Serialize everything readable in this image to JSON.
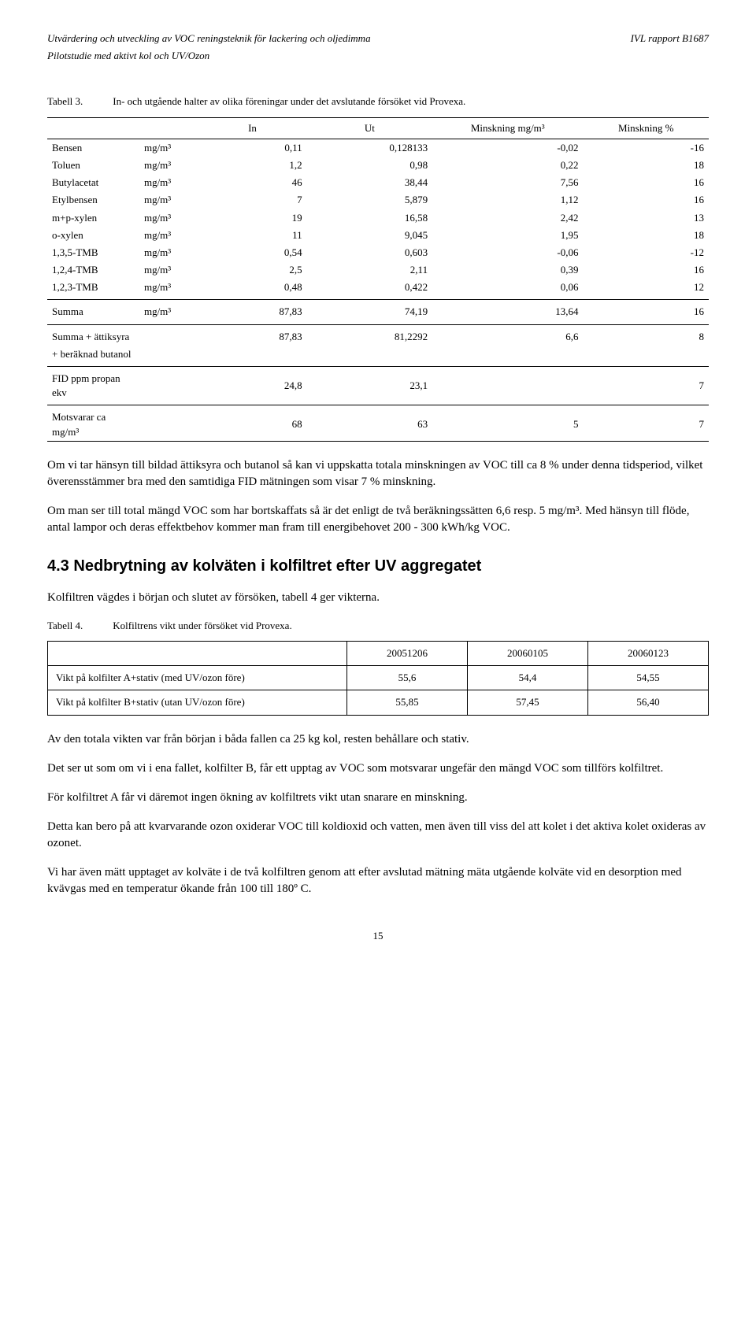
{
  "header": {
    "left_line1": "Utvärdering och utveckling av VOC reningsteknik för lackering och oljedimma",
    "left_line2": "Pilotstudie med aktivt kol och UV/Ozon",
    "right": "IVL rapport B1687"
  },
  "table3": {
    "caption_label": "Tabell 3.",
    "caption_text": "In- och utgående halter av olika föreningar under det avslutande försöket vid Provexa.",
    "headers": [
      "",
      "",
      "In",
      "Ut",
      "Minskning mg/m³",
      "Minskning %"
    ],
    "rows": [
      {
        "name": "Bensen",
        "unit": "mg/m³",
        "in": "0,11",
        "ut": "0,128133",
        "mins": "-0,02",
        "pct": "-16"
      },
      {
        "name": "Toluen",
        "unit": "mg/m³",
        "in": "1,2",
        "ut": "0,98",
        "mins": "0,22",
        "pct": "18"
      },
      {
        "name": "Butylacetat",
        "unit": "mg/m³",
        "in": "46",
        "ut": "38,44",
        "mins": "7,56",
        "pct": "16"
      },
      {
        "name": "Etylbensen",
        "unit": "mg/m³",
        "in": "7",
        "ut": "5,879",
        "mins": "1,12",
        "pct": "16"
      },
      {
        "name": "m+p-xylen",
        "unit": "mg/m³",
        "in": "19",
        "ut": "16,58",
        "mins": "2,42",
        "pct": "13"
      },
      {
        "name": "o-xylen",
        "unit": "mg/m³",
        "in": "11",
        "ut": "9,045",
        "mins": "1,95",
        "pct": "18"
      },
      {
        "name": "1,3,5-TMB",
        "unit": "mg/m³",
        "in": "0,54",
        "ut": "0,603",
        "mins": "-0,06",
        "pct": "-12"
      },
      {
        "name": "1,2,4-TMB",
        "unit": "mg/m³",
        "in": "2,5",
        "ut": "2,11",
        "mins": "0,39",
        "pct": "16"
      },
      {
        "name": "1,2,3-TMB",
        "unit": "mg/m³",
        "in": "0,48",
        "ut": "0,422",
        "mins": "0,06",
        "pct": "12"
      }
    ],
    "summa": {
      "name": "Summa",
      "unit": "mg/m³",
      "in": "87,83",
      "ut": "74,19",
      "mins": "13,64",
      "pct": "16"
    },
    "summa_att": {
      "name": "Summa + ättiksyra\n+ beräknad butanol",
      "in": "87,83",
      "ut": "81,2292",
      "mins": "6,6",
      "pct": "8"
    },
    "fid": {
      "name": "FID ppm propan ekv",
      "in": "24,8",
      "ut": "23,1",
      "pct": "7"
    },
    "motsvarar": {
      "name": "Motsvarar ca mg/m³",
      "in": "68",
      "ut": "63",
      "mins": "5",
      "pct": "7"
    }
  },
  "paragraphs": {
    "p1": "Om vi tar hänsyn till bildad ättiksyra och butanol så kan vi uppskatta totala minskningen av VOC till ca 8 % under denna tidsperiod, vilket överensstämmer bra med den samtidiga FID mätningen som visar 7 % minskning.",
    "p2": "Om man ser till total mängd VOC som har bortskaffats så är det enligt de två beräkningssätten 6,6 resp. 5 mg/m³. Med hänsyn till flöde, antal lampor och deras effektbehov kommer man fram till energibehovet 200 - 300 kWh/kg VOC.",
    "p3": "Kolfiltren vägdes i början och slutet av försöken, tabell 4 ger vikterna.",
    "p4": "Av den totala vikten var från början i båda fallen ca 25 kg kol, resten behållare och stativ.",
    "p5": "Det ser ut som om vi i ena fallet, kolfilter B, får ett upptag av VOC som motsvarar ungefär den mängd VOC som tillförs kolfiltret.",
    "p6": "För kolfiltret A får vi däremot ingen ökning av kolfiltrets vikt utan snarare en minskning.",
    "p7": "Detta kan bero på att kvarvarande ozon oxiderar VOC till koldioxid och vatten, men även till viss del att kolet i det aktiva kolet oxideras av ozonet.",
    "p8": "Vi har även mätt upptaget av kolväte i de två kolfiltren genom att efter avslutad mätning mäta utgående kolväte vid en desorption med kvävgas med en temperatur ökande från 100 till 180º C."
  },
  "section_heading": {
    "number": "4.3",
    "title": "Nedbrytning av kolväten i kolfiltret efter UV aggregatet"
  },
  "table4": {
    "caption_label": "Tabell 4.",
    "caption_text": "Kolfiltrens vikt under försöket vid Provexa.",
    "headers": [
      "",
      "20051206",
      "20060105",
      "20060123"
    ],
    "rows": [
      {
        "name": "Vikt på kolfilter A+stativ (med UV/ozon före)",
        "c1": "55,6",
        "c2": "54,4",
        "c3": "54,55"
      },
      {
        "name": "Vikt på kolfilter B+stativ (utan UV/ozon före)",
        "c1": "55,85",
        "c2": "57,45",
        "c3": "56,40"
      }
    ]
  },
  "page_number": "15"
}
